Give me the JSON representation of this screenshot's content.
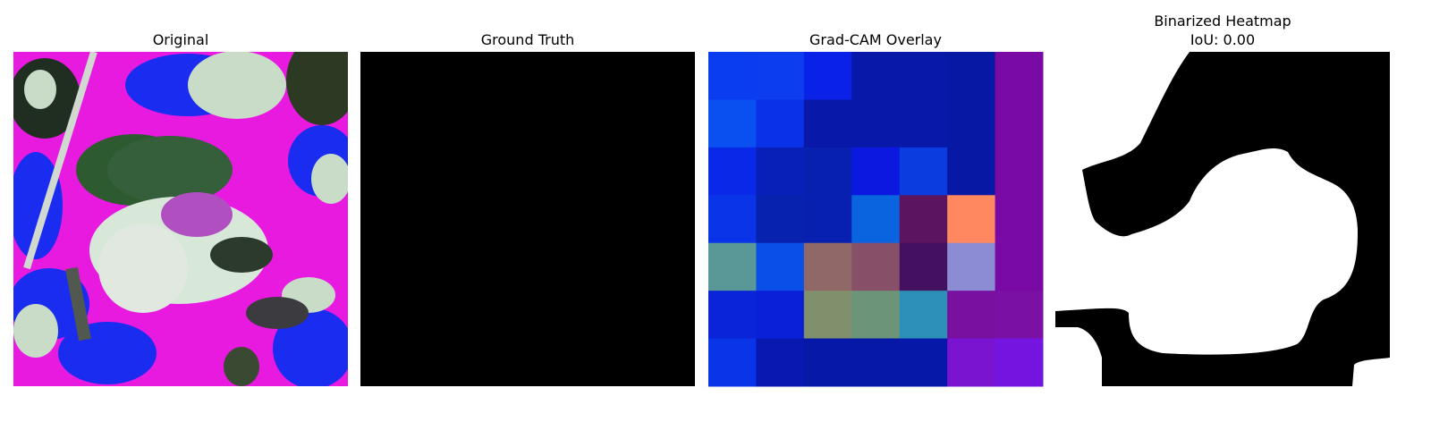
{
  "panels": [
    {
      "title_lines": [
        "Original"
      ]
    },
    {
      "title_lines": [
        "Ground Truth"
      ]
    },
    {
      "title_lines": [
        "Grad-CAM Overlay"
      ]
    },
    {
      "title_lines": [
        "Binarized Heatmap",
        "IoU: 0.00"
      ]
    }
  ]
}
